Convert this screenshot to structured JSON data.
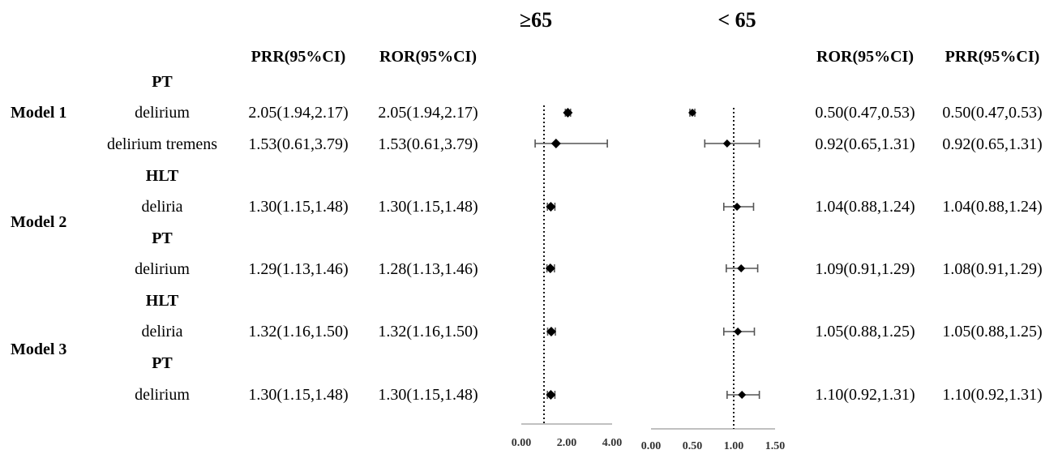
{
  "panels": {
    "left_title": "≥65",
    "right_title": "< 65"
  },
  "columns": {
    "left_prr": "PRR(95%CI)",
    "left_ror": "ROR(95%CI)",
    "right_ror": "ROR(95%CI)",
    "right_prr": "PRR(95%CI)"
  },
  "models": [
    "Model 1",
    "Model 2",
    "Model 3"
  ],
  "rows": [
    {
      "label": "PT",
      "kind": "header"
    },
    {
      "label": "delirium",
      "prr_old": "2.05(1.94,2.17)",
      "ror_old": "2.05(1.94,2.17)",
      "ror_young": "0.50(0.47,0.53)",
      "prr_young": "0.50(0.47,0.53)"
    },
    {
      "label": "delirium tremens",
      "prr_old": "1.53(0.61,3.79)",
      "ror_old": "1.53(0.61,3.79)",
      "ror_young": "0.92(0.65,1.31)",
      "prr_young": "0.92(0.65,1.31)"
    },
    {
      "label": "HLT",
      "kind": "header"
    },
    {
      "label": "deliria",
      "prr_old": "1.30(1.15,1.48)",
      "ror_old": "1.30(1.15,1.48)",
      "ror_young": "1.04(0.88,1.24)",
      "prr_young": "1.04(0.88,1.24)"
    },
    {
      "label": "PT",
      "kind": "header"
    },
    {
      "label": "delirium",
      "prr_old": "1.29(1.13,1.46)",
      "ror_old": "1.28(1.13,1.46)",
      "ror_young": "1.09(0.91,1.29)",
      "prr_young": "1.08(0.91,1.29)"
    },
    {
      "label": "HLT",
      "kind": "header"
    },
    {
      "label": "deliria",
      "prr_old": "1.32(1.16,1.50)",
      "ror_old": "1.32(1.16,1.50)",
      "ror_young": "1.05(0.88,1.25)",
      "prr_young": "1.05(0.88,1.25)"
    },
    {
      "label": "PT",
      "kind": "header"
    },
    {
      "label": "delirium",
      "prr_old": "1.30(1.15,1.48)",
      "ror_old": "1.30(1.15,1.48)",
      "ror_young": "1.10(0.92,1.31)",
      "prr_young": "1.10(0.92,1.31)"
    }
  ],
  "chart_data": [
    {
      "type": "scatter",
      "subtype": "forest",
      "title": "≥65",
      "xlim": [
        0,
        4
      ],
      "xticks": [
        "0.00",
        "2.00",
        "4.00"
      ],
      "reference_line": 1,
      "categories": [
        "delirium",
        "delirium tremens",
        "deliria",
        "delirium",
        "deliria",
        "delirium"
      ],
      "estimates": [
        2.05,
        1.53,
        1.3,
        1.28,
        1.32,
        1.3
      ],
      "lower": [
        1.94,
        0.61,
        1.15,
        1.13,
        1.16,
        1.15
      ],
      "upper": [
        2.17,
        3.79,
        1.48,
        1.46,
        1.5,
        1.48
      ]
    },
    {
      "type": "scatter",
      "subtype": "forest",
      "title": "< 65",
      "xlim": [
        0,
        1.5
      ],
      "xticks": [
        "0.00",
        "0.50",
        "1.00",
        "1.50"
      ],
      "reference_line": 1,
      "categories": [
        "delirium",
        "delirium tremens",
        "deliria",
        "delirium",
        "deliria",
        "delirium"
      ],
      "estimates": [
        0.5,
        0.92,
        1.04,
        1.09,
        1.05,
        1.1
      ],
      "lower": [
        0.47,
        0.65,
        0.88,
        0.91,
        0.88,
        0.92
      ],
      "upper": [
        0.53,
        1.31,
        1.24,
        1.29,
        1.25,
        1.31
      ]
    }
  ]
}
